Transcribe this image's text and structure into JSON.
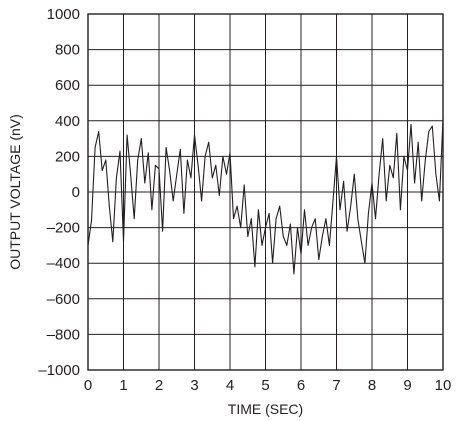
{
  "chart_data": {
    "type": "line",
    "title": "",
    "xlabel": "TIME (SEC)",
    "ylabel": "OUTPUT VOLTAGE (nV)",
    "xlim": [
      0,
      10
    ],
    "ylim": [
      -1000,
      1000
    ],
    "grid": true,
    "x_ticks": [
      "0",
      "1",
      "2",
      "3",
      "4",
      "5",
      "6",
      "7",
      "8",
      "9",
      "10"
    ],
    "y_ticks": [
      "1000",
      "800",
      "600",
      "400",
      "200",
      "0",
      "–200",
      "–400",
      "–600",
      "–800",
      "–1000"
    ],
    "series": [
      {
        "color": "#231f20",
        "points": [
          [
            0.0,
            -300
          ],
          [
            0.1,
            -160
          ],
          [
            0.2,
            250
          ],
          [
            0.3,
            340
          ],
          [
            0.4,
            120
          ],
          [
            0.5,
            180
          ],
          [
            0.6,
            -80
          ],
          [
            0.7,
            -280
          ],
          [
            0.8,
            80
          ],
          [
            0.9,
            230
          ],
          [
            1.0,
            -280
          ],
          [
            1.1,
            320
          ],
          [
            1.2,
            100
          ],
          [
            1.3,
            -150
          ],
          [
            1.4,
            180
          ],
          [
            1.5,
            300
          ],
          [
            1.6,
            50
          ],
          [
            1.7,
            220
          ],
          [
            1.8,
            -100
          ],
          [
            1.9,
            150
          ],
          [
            2.0,
            130
          ],
          [
            2.1,
            -220
          ],
          [
            2.2,
            250
          ],
          [
            2.3,
            120
          ],
          [
            2.4,
            -50
          ],
          [
            2.5,
            100
          ],
          [
            2.6,
            240
          ],
          [
            2.7,
            -120
          ],
          [
            2.8,
            180
          ],
          [
            2.9,
            80
          ],
          [
            3.0,
            320
          ],
          [
            3.1,
            150
          ],
          [
            3.2,
            -50
          ],
          [
            3.3,
            200
          ],
          [
            3.4,
            280
          ],
          [
            3.5,
            80
          ],
          [
            3.6,
            150
          ],
          [
            3.7,
            -20
          ],
          [
            3.8,
            200
          ],
          [
            3.9,
            100
          ],
          [
            4.0,
            220
          ],
          [
            4.1,
            -150
          ],
          [
            4.2,
            -80
          ],
          [
            4.3,
            -200
          ],
          [
            4.4,
            40
          ],
          [
            4.5,
            -250
          ],
          [
            4.6,
            -150
          ],
          [
            4.7,
            -420
          ],
          [
            4.8,
            -100
          ],
          [
            4.9,
            -300
          ],
          [
            5.0,
            -200
          ],
          [
            5.1,
            -120
          ],
          [
            5.2,
            -400
          ],
          [
            5.3,
            -150
          ],
          [
            5.4,
            -80
          ],
          [
            5.5,
            -250
          ],
          [
            5.6,
            -300
          ],
          [
            5.7,
            -180
          ],
          [
            5.8,
            -460
          ],
          [
            5.9,
            -200
          ],
          [
            6.0,
            -350
          ],
          [
            6.1,
            -100
          ],
          [
            6.2,
            -300
          ],
          [
            6.3,
            -200
          ],
          [
            6.4,
            -150
          ],
          [
            6.5,
            -380
          ],
          [
            6.6,
            -250
          ],
          [
            6.7,
            -150
          ],
          [
            6.8,
            -300
          ],
          [
            6.9,
            -50
          ],
          [
            7.0,
            200
          ],
          [
            7.1,
            -100
          ],
          [
            7.2,
            60
          ],
          [
            7.3,
            -220
          ],
          [
            7.4,
            -80
          ],
          [
            7.5,
            100
          ],
          [
            7.6,
            -150
          ],
          [
            7.7,
            -280
          ],
          [
            7.8,
            -400
          ],
          [
            7.9,
            -120
          ],
          [
            8.0,
            50
          ],
          [
            8.1,
            -150
          ],
          [
            8.2,
            100
          ],
          [
            8.3,
            300
          ],
          [
            8.4,
            -50
          ],
          [
            8.5,
            150
          ],
          [
            8.6,
            80
          ],
          [
            8.7,
            330
          ],
          [
            8.8,
            -100
          ],
          [
            8.9,
            200
          ],
          [
            9.0,
            120
          ],
          [
            9.1,
            380
          ],
          [
            9.2,
            50
          ],
          [
            9.3,
            280
          ],
          [
            9.4,
            -50
          ],
          [
            9.5,
            180
          ],
          [
            9.6,
            340
          ],
          [
            9.7,
            370
          ],
          [
            9.8,
            100
          ],
          [
            9.9,
            -50
          ],
          [
            10.0,
            410
          ]
        ]
      }
    ]
  }
}
